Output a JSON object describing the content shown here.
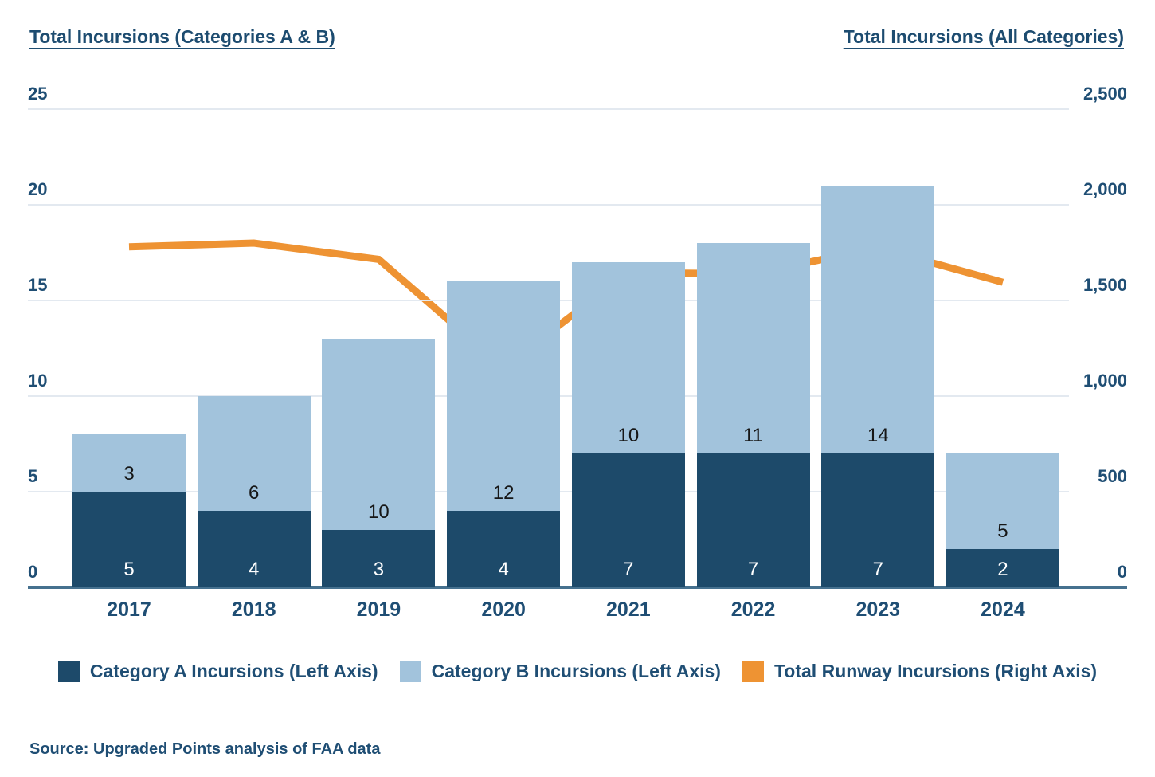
{
  "titles": {
    "left": "Total Incursions (Categories A & B)",
    "right": "Total Incursions (All Categories)"
  },
  "source": "Source: Upgraded Points analysis of FAA data",
  "colors": {
    "category_a": "#1d4a6a",
    "category_b": "#a2c3dc",
    "line": "#ee9333",
    "text": "#1f4e74",
    "gridline": "#e3e9f0",
    "axis_line": "#46718f",
    "label_on_dark": "#ffffff",
    "label_on_light": "#161616"
  },
  "legend": [
    {
      "label": "Category A Incursions (Left Axis)",
      "color_key": "category_a"
    },
    {
      "label": "Category B Incursions (Left Axis)",
      "color_key": "category_b"
    },
    {
      "label": "Total Runway Incursions (Right Axis)",
      "color_key": "line"
    }
  ],
  "chart_data": {
    "type": "combo",
    "subtypes": [
      "stacked-bar",
      "line"
    ],
    "categories": [
      "2017",
      "2018",
      "2019",
      "2020",
      "2021",
      "2022",
      "2023",
      "2024"
    ],
    "series": [
      {
        "name": "Category A Incursions (Left Axis)",
        "type": "bar",
        "axis": "left",
        "values": [
          5,
          4,
          3,
          4,
          7,
          7,
          7,
          2
        ]
      },
      {
        "name": "Category B Incursions (Left Axis)",
        "type": "bar",
        "axis": "left",
        "values": [
          3,
          6,
          10,
          12,
          10,
          11,
          14,
          5
        ]
      },
      {
        "name": "Total Runway Incursions (Right Axis)",
        "type": "line",
        "axis": "right",
        "values": [
          1780,
          1800,
          1715,
          1150,
          1645,
          1640,
          1775,
          1595
        ]
      }
    ],
    "left_axis": {
      "title": "Total Incursions (Categories A & B)",
      "ticks": [
        0,
        5,
        10,
        15,
        20,
        25
      ],
      "range": [
        0,
        25
      ]
    },
    "right_axis": {
      "title": "Total Incursions (All Categories)",
      "tick_labels": [
        "0",
        "500",
        "1,000",
        "1,500",
        "2,000",
        "2,500"
      ],
      "tick_values": [
        0,
        500,
        1000,
        1500,
        2000,
        2500
      ],
      "range": [
        0,
        2500
      ]
    },
    "grid": true,
    "data_labels": true,
    "legend_position": "bottom"
  }
}
